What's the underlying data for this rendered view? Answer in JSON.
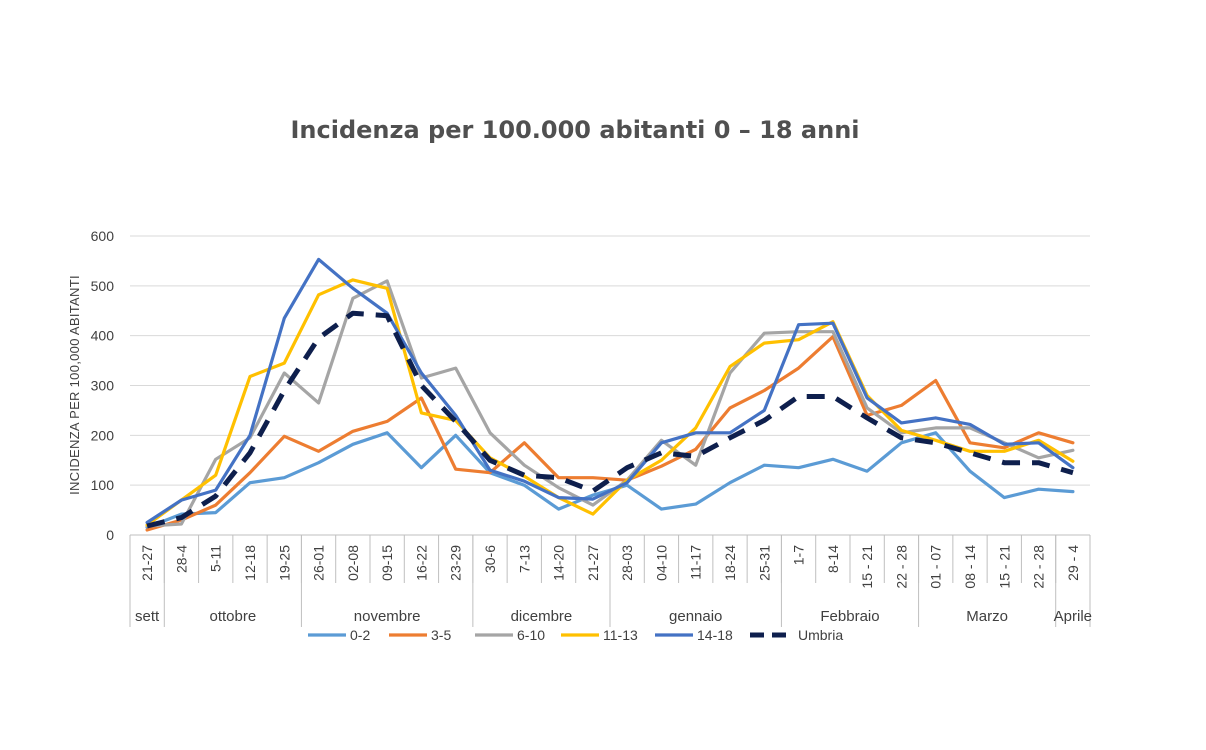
{
  "chart_data": {
    "type": "line",
    "title": "Incidenza per 100.000 abitanti 0 – 18 anni",
    "ylabel": "INCIDENZA PER 100,000 ABITANTI",
    "xlabel": "",
    "ylim": [
      0,
      600
    ],
    "yticks": [
      0,
      100,
      200,
      300,
      400,
      500,
      600
    ],
    "grid": true,
    "legend_position": "bottom",
    "categories": [
      "21-27",
      "28-4",
      "5-11",
      "12-18",
      "19-25",
      "26-01",
      "02-08",
      "09-15",
      "16-22",
      "23-29",
      "30-6",
      "7-13",
      "14-20",
      "21-27",
      "28-03",
      "04-10",
      "11-17",
      "18-24",
      "25-31",
      "1-7",
      "8-14",
      "15 - 21",
      "22 - 28",
      "01 - 07",
      "08 - 14",
      "15 - 21",
      "22 - 28",
      "29 - 4"
    ],
    "month_groups": [
      {
        "label": "sett",
        "start": 0,
        "end": 0
      },
      {
        "label": "ottobre",
        "start": 1,
        "end": 4
      },
      {
        "label": "novembre",
        "start": 5,
        "end": 9
      },
      {
        "label": "dicembre",
        "start": 10,
        "end": 13
      },
      {
        "label": "gennaio",
        "start": 14,
        "end": 18
      },
      {
        "label": "Febbraio",
        "start": 19,
        "end": 22
      },
      {
        "label": "Marzo",
        "start": 23,
        "end": 26
      },
      {
        "label": "Aprile",
        "start": 27,
        "end": 27
      }
    ],
    "series": [
      {
        "name": "0-2",
        "color": "#5B9BD5",
        "dashed": false,
        "values": [
          15,
          42,
          45,
          105,
          115,
          145,
          182,
          205,
          135,
          200,
          125,
          100,
          52,
          80,
          100,
          52,
          62,
          105,
          140,
          135,
          152,
          128,
          185,
          205,
          128,
          75,
          92,
          87
        ]
      },
      {
        "name": "3-5",
        "color": "#ED7D31",
        "dashed": false,
        "values": [
          10,
          30,
          60,
          125,
          198,
          168,
          208,
          228,
          275,
          132,
          125,
          185,
          115,
          115,
          110,
          138,
          172,
          255,
          290,
          335,
          398,
          240,
          260,
          310,
          185,
          175,
          205,
          185
        ]
      },
      {
        "name": "6-10",
        "color": "#A5A5A5",
        "dashed": false,
        "values": [
          18,
          22,
          152,
          195,
          325,
          265,
          475,
          510,
          315,
          335,
          205,
          140,
          95,
          60,
          110,
          190,
          140,
          325,
          405,
          408,
          408,
          255,
          205,
          215,
          215,
          185,
          155,
          170
        ]
      },
      {
        "name": "11-13",
        "color": "#FFC000",
        "dashed": false,
        "values": [
          20,
          70,
          120,
          318,
          345,
          482,
          512,
          495,
          245,
          230,
          155,
          118,
          75,
          42,
          110,
          150,
          215,
          338,
          385,
          392,
          428,
          280,
          210,
          190,
          168,
          168,
          190,
          148
        ]
      },
      {
        "name": "14-18",
        "color": "#4472C4",
        "dashed": false,
        "values": [
          25,
          70,
          90,
          200,
          435,
          553,
          495,
          445,
          325,
          240,
          130,
          108,
          75,
          72,
          105,
          185,
          205,
          205,
          250,
          422,
          425,
          275,
          225,
          235,
          222,
          182,
          185,
          135
        ]
      },
      {
        "name": "Umbria",
        "color": "#0E1F4D",
        "dashed": true,
        "values": [
          18,
          35,
          78,
          165,
          290,
          395,
          445,
          440,
          300,
          228,
          150,
          120,
          115,
          88,
          135,
          165,
          158,
          195,
          230,
          278,
          278,
          235,
          195,
          185,
          165,
          145,
          145,
          125
        ]
      }
    ]
  }
}
